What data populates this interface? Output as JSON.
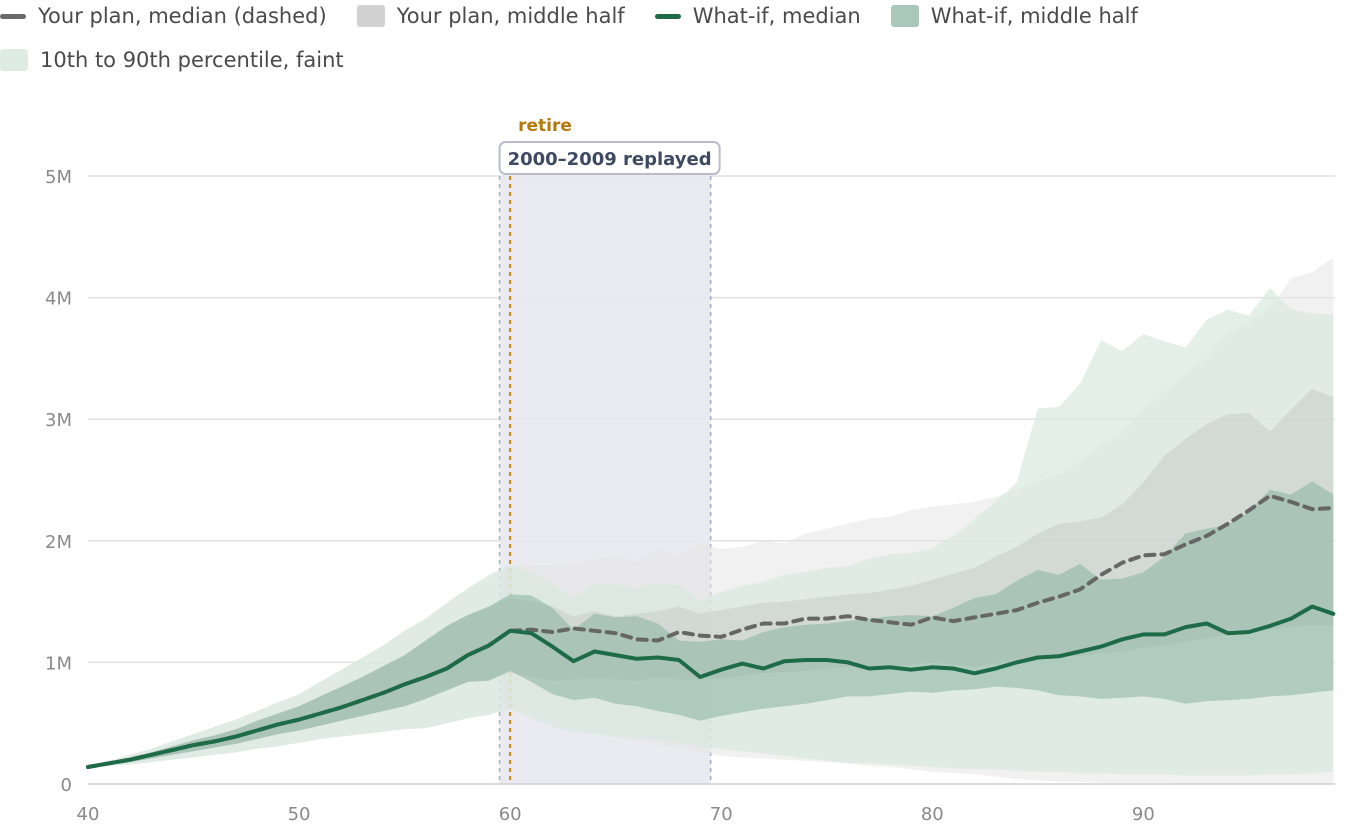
{
  "legend": {
    "items": [
      {
        "label": "Your plan, median (dashed)",
        "kind": "line",
        "color": "#6a6a6a"
      },
      {
        "label": "Your plan, middle half",
        "kind": "box",
        "color": "#d2d2d2"
      },
      {
        "label": "What-if, median",
        "kind": "line",
        "color": "#1e6b47"
      },
      {
        "label": "What-if, middle half",
        "kind": "box",
        "color": "#a9c8b9"
      },
      {
        "label": "10th to 90th percentile, faint",
        "kind": "box",
        "color": "#dfece6"
      }
    ]
  },
  "annotations": {
    "retire_label": "retire",
    "retire_age": 60,
    "window_label": "2000–2009 replayed",
    "window_start": 59.5,
    "window_end": 69.5
  },
  "colors": {
    "whatif_line": "#1e6b47",
    "plan_line": "#666666",
    "plan_band_faint": "#e6e6e6",
    "plan_band_mid": "#c9ccc9",
    "whatif_band_faint": "#d8e8e0",
    "whatif_band_mid": "#8fb8a4",
    "window_fill": "#e8e9f0",
    "window_border": "#a9a9c8",
    "retire_line": "#c8861a",
    "grid": "#e2e2e2"
  },
  "chart_data": {
    "type": "area",
    "title": "",
    "xlabel": "",
    "ylabel": "",
    "xlim": [
      40,
      99
    ],
    "ylim": [
      0,
      5000000
    ],
    "x_ticks": [
      {
        "value": 40,
        "label": "40"
      },
      {
        "value": 50,
        "label": "50"
      },
      {
        "value": 60,
        "label": "60"
      },
      {
        "value": 70,
        "label": "70"
      },
      {
        "value": 80,
        "label": "80"
      },
      {
        "value": 90,
        "label": "90"
      }
    ],
    "y_ticks": [
      {
        "value": 0,
        "label": "0"
      },
      {
        "value": 1000000,
        "label": "1M"
      },
      {
        "value": 2000000,
        "label": "2M"
      },
      {
        "value": 3000000,
        "label": "3M"
      },
      {
        "value": 4000000,
        "label": "4M"
      },
      {
        "value": 5000000,
        "label": "5M"
      }
    ],
    "x": [
      40,
      41,
      42,
      43,
      44,
      45,
      46,
      47,
      48,
      49,
      50,
      51,
      52,
      53,
      54,
      55,
      56,
      57,
      58,
      59,
      60,
      61,
      62,
      63,
      64,
      65,
      66,
      67,
      68,
      69,
      70,
      71,
      72,
      73,
      74,
      75,
      76,
      77,
      78,
      79,
      80,
      81,
      82,
      83,
      84,
      85,
      86,
      87,
      88,
      89,
      90,
      91,
      92,
      93,
      94,
      95,
      96,
      97,
      98,
      99
    ],
    "series": [
      {
        "name": "Your plan, median (dashed)",
        "role": "plan_median",
        "values": [
          140000,
          170000,
          200000,
          240000,
          280000,
          320000,
          350000,
          390000,
          440000,
          490000,
          530000,
          580000,
          630000,
          690000,
          750000,
          820000,
          880000,
          950000,
          1060000,
          1140000,
          1260000,
          1270000,
          1250000,
          1280000,
          1260000,
          1240000,
          1190000,
          1180000,
          1250000,
          1220000,
          1210000,
          1270000,
          1320000,
          1320000,
          1360000,
          1360000,
          1380000,
          1350000,
          1330000,
          1310000,
          1370000,
          1340000,
          1370000,
          1400000,
          1430000,
          1490000,
          1540000,
          1600000,
          1720000,
          1820000,
          1880000,
          1890000,
          1970000,
          2040000,
          2140000,
          2250000,
          2370000,
          2320000,
          2260000,
          2270000
        ]
      },
      {
        "name": "Your plan, middle half (upper)",
        "role": "plan_mid_hi",
        "values": [
          140000,
          180000,
          220000,
          260000,
          310000,
          360000,
          400000,
          450000,
          520000,
          580000,
          640000,
          720000,
          800000,
          880000,
          970000,
          1060000,
          1180000,
          1300000,
          1390000,
          1460000,
          1530000,
          1500000,
          1460000,
          1380000,
          1420000,
          1380000,
          1400000,
          1420000,
          1460000,
          1400000,
          1430000,
          1460000,
          1490000,
          1500000,
          1520000,
          1540000,
          1560000,
          1570000,
          1600000,
          1630000,
          1680000,
          1730000,
          1780000,
          1870000,
          1950000,
          2060000,
          2140000,
          2160000,
          2190000,
          2300000,
          2480000,
          2700000,
          2840000,
          2960000,
          3040000,
          3050000,
          2900000,
          3080000,
          3250000,
          3180000
        ]
      },
      {
        "name": "Your plan, middle half (lower)",
        "role": "plan_mid_lo",
        "values": [
          140000,
          160000,
          180000,
          210000,
          240000,
          270000,
          300000,
          330000,
          370000,
          410000,
          440000,
          480000,
          520000,
          560000,
          600000,
          640000,
          700000,
          770000,
          840000,
          850000,
          920000,
          880000,
          850000,
          860000,
          870000,
          860000,
          850000,
          880000,
          860000,
          860000,
          870000,
          890000,
          910000,
          920000,
          930000,
          950000,
          960000,
          960000,
          960000,
          980000,
          1000000,
          980000,
          960000,
          990000,
          1010000,
          1040000,
          1060000,
          1050000,
          1080000,
          1090000,
          1120000,
          1140000,
          1170000,
          1200000,
          1230000,
          1250000,
          1270000,
          1290000,
          1310000,
          1300000
        ]
      },
      {
        "name": "Your plan, 10th to 90th (upper)",
        "role": "plan_faint_hi",
        "values": [
          140000,
          190000,
          240000,
          290000,
          350000,
          410000,
          470000,
          530000,
          600000,
          670000,
          740000,
          840000,
          940000,
          1040000,
          1140000,
          1260000,
          1360000,
          1490000,
          1600000,
          1700000,
          1780000,
          1800000,
          1800000,
          1820000,
          1850000,
          1880000,
          1830000,
          1930000,
          1880000,
          1980000,
          1930000,
          1950000,
          2000000,
          1980000,
          2060000,
          2100000,
          2140000,
          2180000,
          2200000,
          2250000,
          2280000,
          2300000,
          2320000,
          2360000,
          2420000,
          2490000,
          2550000,
          2650000,
          2780000,
          2890000,
          3080000,
          3220000,
          3380000,
          3500000,
          3700000,
          3800000,
          3900000,
          4160000,
          4210000,
          4330000
        ]
      },
      {
        "name": "Your plan, 10th to 90th (lower)",
        "role": "plan_faint_lo",
        "values": [
          140000,
          150000,
          160000,
          180000,
          200000,
          220000,
          240000,
          260000,
          290000,
          310000,
          340000,
          370000,
          390000,
          410000,
          430000,
          450000,
          460000,
          500000,
          540000,
          570000,
          620000,
          590000,
          530000,
          460000,
          420000,
          380000,
          350000,
          320000,
          290000,
          260000,
          230000,
          220000,
          210000,
          200000,
          190000,
          180000,
          170000,
          150000,
          140000,
          120000,
          100000,
          90000,
          80000,
          60000,
          40000,
          30000,
          20000,
          20000,
          10000,
          10000,
          10000,
          10000,
          0,
          0,
          0,
          0,
          0,
          0,
          0,
          0
        ]
      },
      {
        "name": "What-if, median",
        "role": "whatif_median",
        "values": [
          140000,
          170000,
          200000,
          240000,
          280000,
          320000,
          350000,
          390000,
          440000,
          490000,
          530000,
          580000,
          630000,
          690000,
          750000,
          820000,
          880000,
          950000,
          1060000,
          1140000,
          1260000,
          1240000,
          1130000,
          1010000,
          1090000,
          1060000,
          1030000,
          1040000,
          1020000,
          880000,
          940000,
          990000,
          950000,
          1010000,
          1020000,
          1020000,
          1000000,
          950000,
          960000,
          940000,
          960000,
          950000,
          910000,
          950000,
          1000000,
          1040000,
          1050000,
          1090000,
          1130000,
          1190000,
          1230000,
          1230000,
          1290000,
          1320000,
          1240000,
          1250000,
          1300000,
          1360000,
          1460000,
          1400000
        ]
      },
      {
        "name": "What-if, middle half (upper)",
        "role": "whatif_mid_hi",
        "values": [
          140000,
          180000,
          220000,
          260000,
          310000,
          360000,
          400000,
          450000,
          520000,
          580000,
          640000,
          720000,
          800000,
          880000,
          970000,
          1060000,
          1180000,
          1300000,
          1390000,
          1460000,
          1560000,
          1550000,
          1450000,
          1270000,
          1400000,
          1370000,
          1380000,
          1320000,
          1180000,
          1170000,
          1190000,
          1180000,
          1250000,
          1290000,
          1310000,
          1320000,
          1340000,
          1360000,
          1380000,
          1390000,
          1380000,
          1450000,
          1530000,
          1560000,
          1670000,
          1760000,
          1720000,
          1810000,
          1680000,
          1690000,
          1740000,
          1870000,
          2060000,
          2100000,
          2130000,
          2240000,
          2420000,
          2380000,
          2490000,
          2380000
        ]
      },
      {
        "name": "What-if, middle half (lower)",
        "role": "whatif_mid_lo",
        "values": [
          140000,
          160000,
          180000,
          210000,
          240000,
          270000,
          300000,
          330000,
          370000,
          410000,
          440000,
          480000,
          520000,
          560000,
          600000,
          640000,
          700000,
          770000,
          840000,
          850000,
          930000,
          840000,
          740000,
          690000,
          710000,
          660000,
          640000,
          600000,
          570000,
          520000,
          560000,
          590000,
          620000,
          640000,
          660000,
          690000,
          720000,
          720000,
          740000,
          760000,
          750000,
          770000,
          780000,
          800000,
          790000,
          770000,
          730000,
          720000,
          700000,
          710000,
          720000,
          700000,
          660000,
          680000,
          690000,
          700000,
          720000,
          730000,
          750000,
          770000
        ]
      },
      {
        "name": "What-if, 10th to 90th (upper)",
        "role": "whatif_faint_hi",
        "values": [
          140000,
          190000,
          240000,
          290000,
          350000,
          410000,
          470000,
          530000,
          600000,
          670000,
          740000,
          840000,
          940000,
          1040000,
          1140000,
          1260000,
          1360000,
          1490000,
          1610000,
          1720000,
          1800000,
          1740000,
          1650000,
          1530000,
          1650000,
          1640000,
          1610000,
          1650000,
          1640000,
          1510000,
          1580000,
          1630000,
          1660000,
          1720000,
          1740000,
          1780000,
          1790000,
          1850000,
          1890000,
          1900000,
          1940000,
          2040000,
          2180000,
          2320000,
          2480000,
          3090000,
          3100000,
          3290000,
          3650000,
          3560000,
          3700000,
          3640000,
          3590000,
          3820000,
          3900000,
          3850000,
          4080000,
          3900000,
          3870000,
          3860000
        ]
      },
      {
        "name": "What-if, 10th to 90th (lower)",
        "role": "whatif_faint_lo",
        "values": [
          140000,
          150000,
          160000,
          180000,
          200000,
          220000,
          240000,
          260000,
          290000,
          310000,
          340000,
          370000,
          390000,
          410000,
          430000,
          450000,
          460000,
          500000,
          540000,
          570000,
          620000,
          540000,
          470000,
          430000,
          410000,
          390000,
          380000,
          360000,
          340000,
          300000,
          290000,
          270000,
          250000,
          230000,
          210000,
          190000,
          170000,
          170000,
          160000,
          150000,
          140000,
          130000,
          120000,
          120000,
          110000,
          100000,
          100000,
          90000,
          90000,
          80000,
          80000,
          80000,
          70000,
          70000,
          70000,
          70000,
          80000,
          80000,
          90000,
          100000
        ]
      }
    ]
  }
}
